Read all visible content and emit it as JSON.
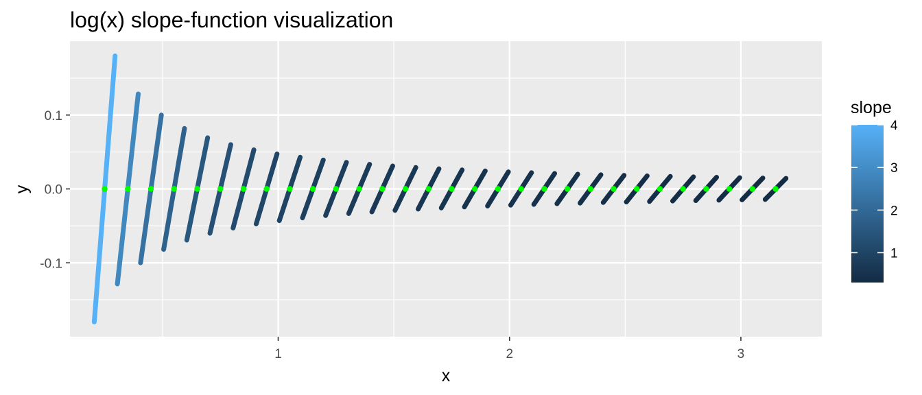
{
  "chart_data": {
    "type": "segment",
    "title": "log(x) slope-function visualization",
    "xlabel": "x",
    "ylabel": "y",
    "xlim": [
      0.1,
      3.35
    ],
    "ylim": [
      -0.2,
      0.2
    ],
    "x_ticks": [
      1,
      2,
      3
    ],
    "x_tick_labels": [
      "1",
      "2",
      "3"
    ],
    "y_ticks": [
      -0.1,
      0.0,
      0.1
    ],
    "y_tick_labels": [
      "-0.1",
      "0.0",
      "0.1"
    ],
    "grid": true,
    "legend": {
      "title": "slope",
      "placement": "right",
      "range": [
        0.3,
        4
      ],
      "ticks": [
        1,
        2,
        3,
        4
      ],
      "tick_labels": [
        "1",
        "2",
        "3",
        "4"
      ],
      "color_low": "#132B43",
      "color_high": "#56B1F7"
    },
    "point_color": "#00FF00",
    "points": {
      "x": [
        0.25,
        0.35,
        0.45,
        0.55,
        0.65,
        0.75,
        0.85,
        0.95,
        1.05,
        1.15,
        1.25,
        1.35,
        1.45,
        1.55,
        1.65,
        1.75,
        1.85,
        1.95,
        2.05,
        2.15,
        2.25,
        2.35,
        2.45,
        2.55,
        2.65,
        2.75,
        2.85,
        2.95,
        3.05,
        3.15
      ],
      "y": [
        0,
        0,
        0,
        0,
        0,
        0,
        0,
        0,
        0,
        0,
        0,
        0,
        0,
        0,
        0,
        0,
        0,
        0,
        0,
        0,
        0,
        0,
        0,
        0,
        0,
        0,
        0,
        0,
        0,
        0
      ]
    },
    "segment_half_dx": 0.045
  }
}
